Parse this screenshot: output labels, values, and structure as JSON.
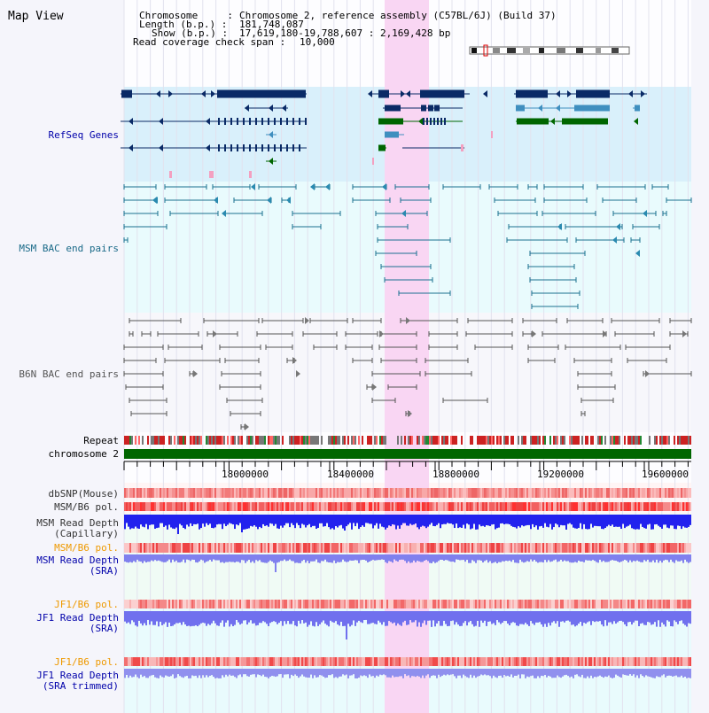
{
  "title": "Map View",
  "info": {
    "chromosome_key": "Chromosome     :",
    "chromosome_val": "Chromosome 2, reference assembly (C57BL/6J) (Build 37)",
    "length_key": "Length (b.p.) :",
    "length_val": "181,748,087",
    "show_key": "Show (b.p.) :",
    "show_val": "17,619,180-19,788,607 : 2,169,428 bp",
    "coverage_key": "Read coverage check span :",
    "coverage_val": "10,000"
  },
  "tracks": {
    "refseq": "RefSeq Genes",
    "msm_bac": "MSM BAC end pairs",
    "b6n_bac": "B6N BAC end pairs",
    "repeat": "Repeat",
    "chromosome": "chromosome 2",
    "dbsnp": "dbSNP(Mouse)",
    "msm_b6_pol_1": "MSM/B6 pol.",
    "msm_depth_cap_1": "MSM Read Depth",
    "msm_depth_cap_2": "(Capillary)",
    "msm_b6_pol_2": "MSM/B6 pol.",
    "msm_depth_sra_1": "MSM Read Depth",
    "msm_depth_sra_2": "(SRA)",
    "jf1_b6_pol_1": "JF1/B6 pol.",
    "jf1_depth_sra_1": "JF1 Read Depth",
    "jf1_depth_sra_2": "(SRA)",
    "jf1_b6_pol_2": "JF1/B6 pol.",
    "jf1_depth_trim_1": "JF1 Read Depth",
    "jf1_depth_trim_2": "(SRA trimmed)"
  },
  "axis": {
    "ticks": [
      "18000000",
      "18400000",
      "18800000",
      "19200000",
      "19600000"
    ]
  },
  "colors": {
    "highlight": "#f9d6f3",
    "refseq_bg": "#d9f0fb",
    "msm_bac_bg": "#e9fbfd",
    "chromosome_bar": "#006600",
    "gene_dark": "#0a2a66",
    "gene_mid": "#3f8fbf",
    "gene_green": "#006600",
    "msm_line": "#1a7090",
    "b6n_line": "#555555",
    "label_blue": "#0000aa",
    "label_orange": "#ee9900"
  }
}
